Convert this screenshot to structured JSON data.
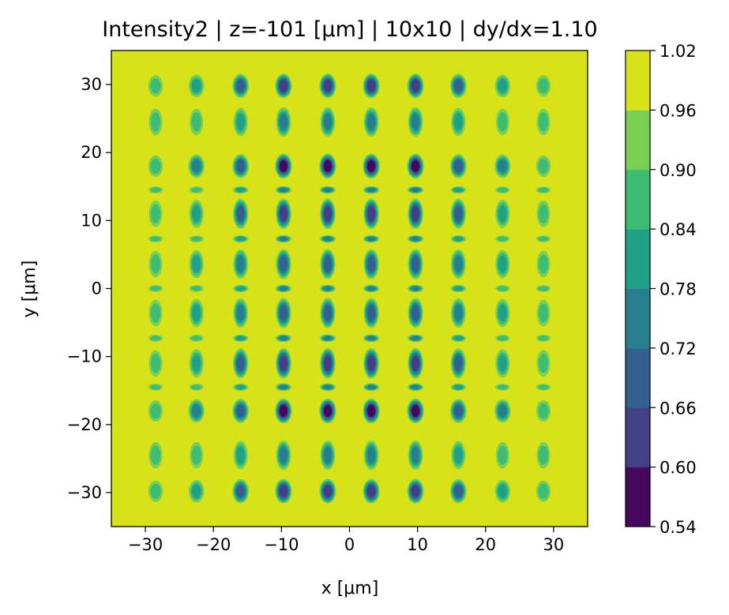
{
  "chart_data": {
    "type": "heatmap",
    "subtype": "filled-contour",
    "title": "Intensity2 | z=-101 [μm] | 10x10 | dy/dx=1.10",
    "xlabel": "x [μm]",
    "ylabel": "y [μm]",
    "xlim": [
      -35,
      35
    ],
    "ylim": [
      -35,
      35
    ],
    "xticks": [
      -30,
      -20,
      -10,
      0,
      10,
      20,
      30
    ],
    "xtick_labels": [
      "−30",
      "−20",
      "−10",
      "0",
      "10",
      "20",
      "30"
    ],
    "yticks": [
      -30,
      -20,
      -10,
      0,
      10,
      20,
      30
    ],
    "ytick_labels": [
      "−30",
      "−20",
      "−10",
      "0",
      "10",
      "20",
      "30"
    ],
    "colormap": "viridis",
    "colorbar": {
      "levels": [
        0.54,
        0.6,
        0.66,
        0.72,
        0.78,
        0.84,
        0.9,
        0.96,
        1.02
      ],
      "level_labels": [
        "0.54",
        "0.60",
        "0.66",
        "0.72",
        "0.78",
        "0.84",
        "0.90",
        "0.96",
        "1.02"
      ],
      "colors": [
        "#46085c",
        "#433e85",
        "#33608d",
        "#277f8e",
        "#1fa187",
        "#3fbc73",
        "#7ad151",
        "#d8e219"
      ]
    },
    "background_value": 0.99,
    "column_x": [
      -28.5,
      -22.5,
      -16,
      -9.7,
      -3.2,
      3.2,
      9.7,
      16,
      22.5,
      28.5
    ],
    "column_strength": [
      0.3,
      0.45,
      0.72,
      0.9,
      1.0,
      1.0,
      0.9,
      0.72,
      0.45,
      0.3
    ],
    "rows": [
      {
        "y": 29.8,
        "shape": "dot",
        "strength": 0.85
      },
      {
        "y": 24.5,
        "shape": "bar",
        "strength": 0.55
      },
      {
        "y": 18.0,
        "shape": "dot",
        "strength": 1.0
      },
      {
        "y": 14.5,
        "shape": "thin",
        "strength": 0.55
      },
      {
        "y": 11.0,
        "shape": "bar",
        "strength": 0.85
      },
      {
        "y": 7.3,
        "shape": "thin",
        "strength": 0.55
      },
      {
        "y": 3.6,
        "shape": "bar",
        "strength": 0.7
      },
      {
        "y": 0.0,
        "shape": "thin",
        "strength": 0.55
      },
      {
        "y": -3.6,
        "shape": "bar",
        "strength": 0.7
      },
      {
        "y": -7.3,
        "shape": "thin",
        "strength": 0.55
      },
      {
        "y": -11.0,
        "shape": "bar",
        "strength": 0.85
      },
      {
        "y": -14.5,
        "shape": "thin",
        "strength": 0.55
      },
      {
        "y": -18.0,
        "shape": "dot",
        "strength": 1.0
      },
      {
        "y": -24.5,
        "shape": "bar",
        "strength": 0.55
      },
      {
        "y": -29.8,
        "shape": "dot",
        "strength": 0.85
      }
    ]
  }
}
